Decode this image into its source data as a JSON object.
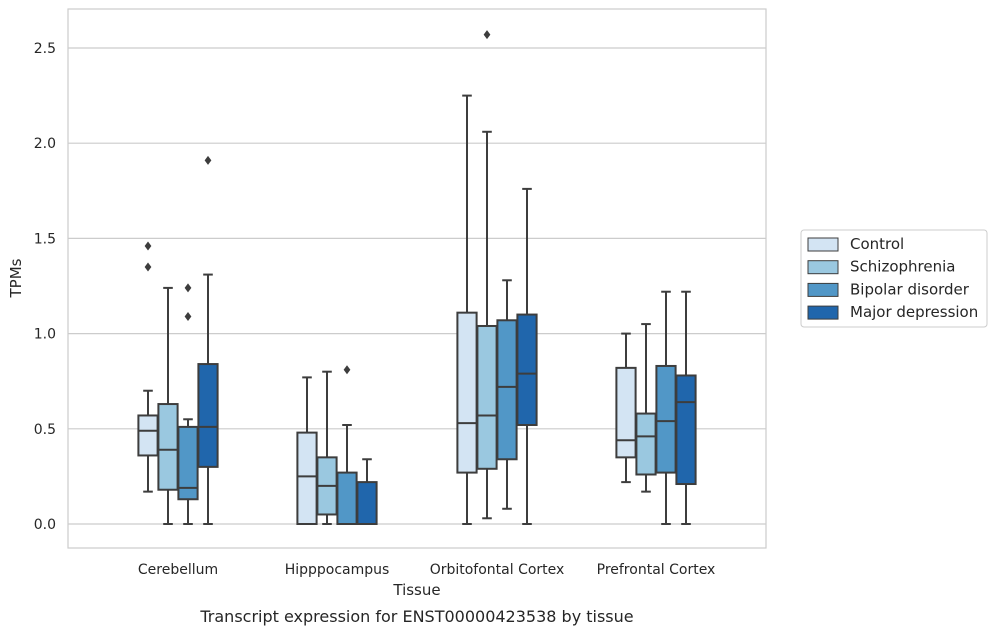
{
  "chart_data": {
    "type": "box",
    "caption": "Transcript expression for ENST00000423538 by tissue",
    "xlabel": "Tissue",
    "ylabel": "TPMs",
    "ylim": [
      -0.125,
      2.7
    ],
    "yticks": [
      0.0,
      0.5,
      1.0,
      1.5,
      2.0,
      2.5
    ],
    "ytick_labels": [
      "0.0",
      "0.5",
      "1.0",
      "1.5",
      "2.0",
      "2.5"
    ],
    "grid": true,
    "legend_position": "right",
    "categories": [
      "Cerebellum",
      "Hipppocampus",
      "Orbitofontal Cortex",
      "Prefrontal Cortex"
    ],
    "series": [
      {
        "name": "Control",
        "color": "#d3e4f3",
        "boxes": [
          {
            "whisker_low": 0.17,
            "q1": 0.36,
            "median": 0.49,
            "q3": 0.57,
            "whisker_high": 0.7,
            "outliers": [
              1.35,
              1.46
            ]
          },
          {
            "whisker_low": 0.0,
            "q1": 0.0,
            "median": 0.25,
            "q3": 0.48,
            "whisker_high": 0.77,
            "outliers": []
          },
          {
            "whisker_low": 0.0,
            "q1": 0.27,
            "median": 0.53,
            "q3": 1.11,
            "whisker_high": 2.25,
            "outliers": []
          },
          {
            "whisker_low": 0.22,
            "q1": 0.35,
            "median": 0.44,
            "q3": 0.82,
            "whisker_high": 1.0,
            "outliers": []
          }
        ]
      },
      {
        "name": "Schizophrenia",
        "color": "#9ac8e0",
        "boxes": [
          {
            "whisker_low": 0.0,
            "q1": 0.18,
            "median": 0.39,
            "q3": 0.63,
            "whisker_high": 1.24,
            "outliers": []
          },
          {
            "whisker_low": 0.0,
            "q1": 0.05,
            "median": 0.2,
            "q3": 0.35,
            "whisker_high": 0.8,
            "outliers": []
          },
          {
            "whisker_low": 0.03,
            "q1": 0.29,
            "median": 0.57,
            "q3": 1.04,
            "whisker_high": 2.06,
            "outliers": [
              2.57
            ]
          },
          {
            "whisker_low": 0.17,
            "q1": 0.26,
            "median": 0.46,
            "q3": 0.58,
            "whisker_high": 1.05,
            "outliers": []
          }
        ]
      },
      {
        "name": "Bipolar disorder",
        "color": "#5197c7",
        "boxes": [
          {
            "whisker_low": 0.0,
            "q1": 0.13,
            "median": 0.19,
            "q3": 0.51,
            "whisker_high": 0.55,
            "outliers": [
              1.09,
              1.24
            ]
          },
          {
            "whisker_low": 0.0,
            "q1": 0.0,
            "median": 0.0,
            "q3": 0.27,
            "whisker_high": 0.52,
            "outliers": [
              0.81
            ]
          },
          {
            "whisker_low": 0.08,
            "q1": 0.34,
            "median": 0.72,
            "q3": 1.07,
            "whisker_high": 1.28,
            "outliers": []
          },
          {
            "whisker_low": 0.0,
            "q1": 0.27,
            "median": 0.54,
            "q3": 0.83,
            "whisker_high": 1.22,
            "outliers": []
          }
        ]
      },
      {
        "name": "Major depression",
        "color": "#2066ac",
        "boxes": [
          {
            "whisker_low": 0.0,
            "q1": 0.3,
            "median": 0.51,
            "q3": 0.84,
            "whisker_high": 1.31,
            "outliers": [
              1.91
            ]
          },
          {
            "whisker_low": 0.0,
            "q1": 0.0,
            "median": 0.0,
            "q3": 0.22,
            "whisker_high": 0.34,
            "outliers": []
          },
          {
            "whisker_low": 0.0,
            "q1": 0.52,
            "median": 0.79,
            "q3": 1.1,
            "whisker_high": 1.76,
            "outliers": []
          },
          {
            "whisker_low": 0.0,
            "q1": 0.21,
            "median": 0.64,
            "q3": 0.78,
            "whisker_high": 1.22,
            "outliers": []
          }
        ]
      }
    ]
  }
}
